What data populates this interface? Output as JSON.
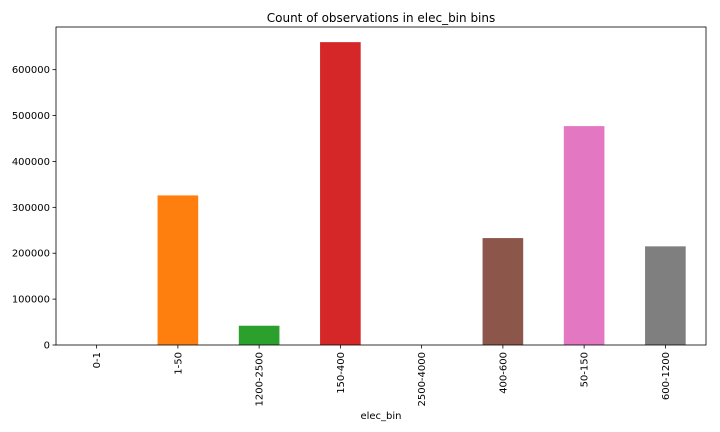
{
  "chart_data": {
    "type": "bar",
    "title": "Count of observations in elec_bin bins",
    "xlabel": "elec_bin",
    "ylabel": "",
    "categories": [
      "0-1",
      "1-50",
      "1200-2500",
      "150-400",
      "2500-4000",
      "400-600",
      "50-150",
      "600-1200"
    ],
    "values": [
      0,
      326000,
      42000,
      660000,
      0,
      233000,
      477000,
      215000
    ],
    "colors": [
      "#1f77b4",
      "#ff7f0e",
      "#2ca02c",
      "#d62728",
      "#9467bd",
      "#8c564b",
      "#e377c2",
      "#7f7f7f"
    ],
    "ylim": [
      0,
      693000
    ],
    "yticks": [
      0,
      100000,
      200000,
      300000,
      400000,
      500000,
      600000
    ],
    "ytick_labels": [
      "0",
      "100000",
      "200000",
      "300000",
      "400000",
      "500000",
      "600000"
    ],
    "grid": false,
    "legend": "none"
  }
}
